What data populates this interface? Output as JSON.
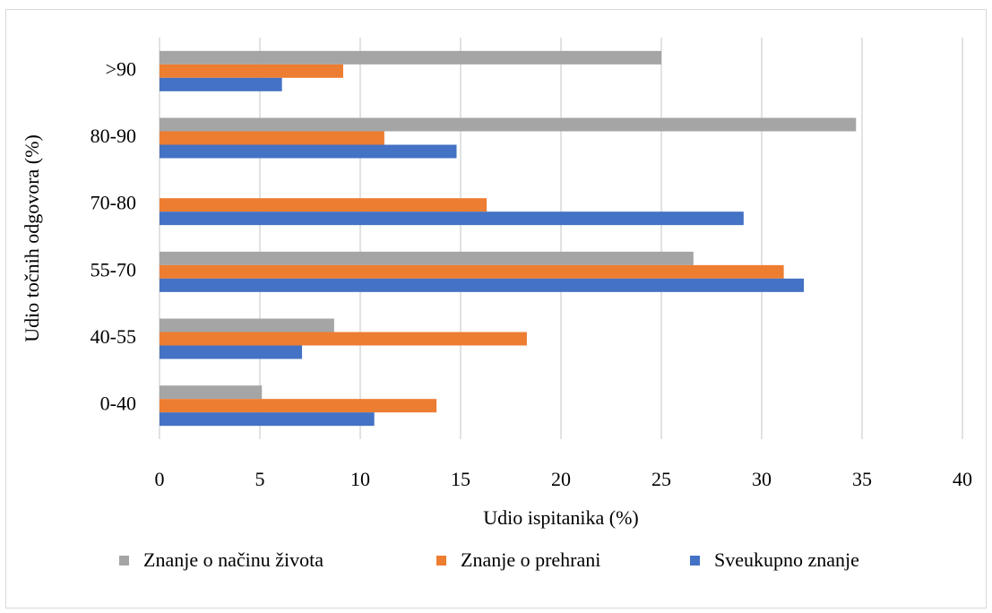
{
  "chart_data": {
    "type": "hbar",
    "xlabel": "Udio ispitanika (%)",
    "ylabel": "Udio točnih odgovora (%)",
    "categories": [
      "0-40",
      "40-55",
      "55-70",
      "70-80",
      "80-90",
      ">90"
    ],
    "series": [
      {
        "name": "Znanje o načinu života",
        "color": "#a5a5a5",
        "values": [
          5.1,
          8.7,
          26.6,
          0,
          34.7,
          25.0
        ]
      },
      {
        "name": "Znanje o prehrani",
        "color": "#ed7d31",
        "values": [
          13.8,
          18.3,
          31.1,
          16.3,
          11.2,
          9.15
        ]
      },
      {
        "name": "Sveukupno znanje",
        "color": "#4472c4",
        "values": [
          10.7,
          7.1,
          32.1,
          29.1,
          14.8,
          6.1
        ]
      }
    ],
    "xlim": [
      0,
      40
    ],
    "xticks": [
      0,
      5,
      10,
      15,
      20,
      25,
      30,
      35,
      40
    ],
    "grid": true,
    "legend": "bottom"
  }
}
